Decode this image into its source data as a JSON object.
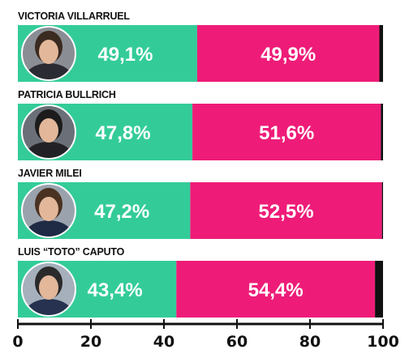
{
  "chart_data": {
    "type": "bar",
    "orientation": "horizontal",
    "stacked": true,
    "categories": [
      "VICTORIA VILLARRUEL",
      "PATRICIA BULLRICH",
      "JAVIER MILEI",
      "LUIS “TOTO” CAPUTO"
    ],
    "series": [
      {
        "values": [
          49.1,
          47.8,
          47.2,
          43.4
        ],
        "labels": [
          "49,1%",
          "47,8%",
          "47,2%",
          "43,4%"
        ],
        "color": "#33cc99"
      },
      {
        "values": [
          49.9,
          51.6,
          52.5,
          54.4
        ],
        "labels": [
          "49,9%",
          "51,6%",
          "52,5%",
          "54,4%"
        ],
        "color": "#ee1c78"
      },
      {
        "values": [
          1.0,
          0.6,
          0.3,
          2.2
        ],
        "color": "#111111"
      }
    ],
    "xlim": [
      0,
      100
    ],
    "xticks": [
      "0",
      "20",
      "40",
      "60",
      "80",
      "100"
    ],
    "grid": false,
    "legend": "none"
  },
  "colors": {
    "accent_green": "#33cc99",
    "accent_pink": "#ee1c78",
    "remainder": "#111111",
    "axis": "#111111"
  },
  "icons": [
    "portrait-photo"
  ]
}
